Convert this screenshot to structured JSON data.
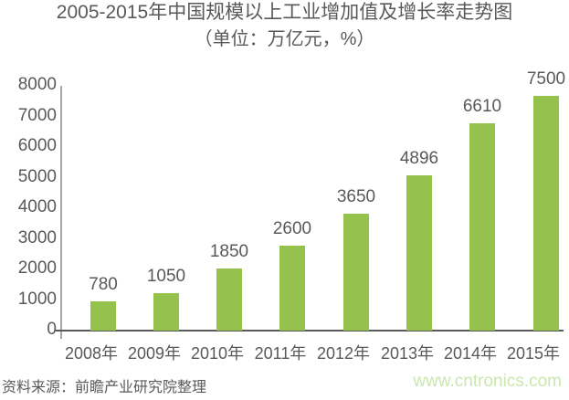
{
  "chart_data": {
    "type": "bar",
    "title": "2005-2015年中国规模以上工业增加值及增长率走势图",
    "subtitle_unit": "（单位：万亿元，%）",
    "categories": [
      "2008年",
      "2009年",
      "2010年",
      "2011年",
      "2012年",
      "2013年",
      "2014年",
      "2015年"
    ],
    "values": [
      780,
      1050,
      1850,
      2600,
      3650,
      4896,
      6610,
      7500
    ],
    "xlabel": "",
    "ylabel": "",
    "ylim": [
      0,
      8000
    ],
    "yticks": [
      0,
      1000,
      2000,
      3000,
      4000,
      5000,
      6000,
      7000,
      8000
    ],
    "grid": false,
    "legend": "none",
    "data_labels": true
  },
  "colors": {
    "bar": "#94C24C",
    "text": "#595959",
    "y_axis_line": "#A6A6A6",
    "x_axis_line": "#595959",
    "watermark": "#C9E7AE"
  },
  "footer": {
    "source": "资料来源：前瞻产业研究院整理",
    "watermark": "www.cntronics.com"
  }
}
